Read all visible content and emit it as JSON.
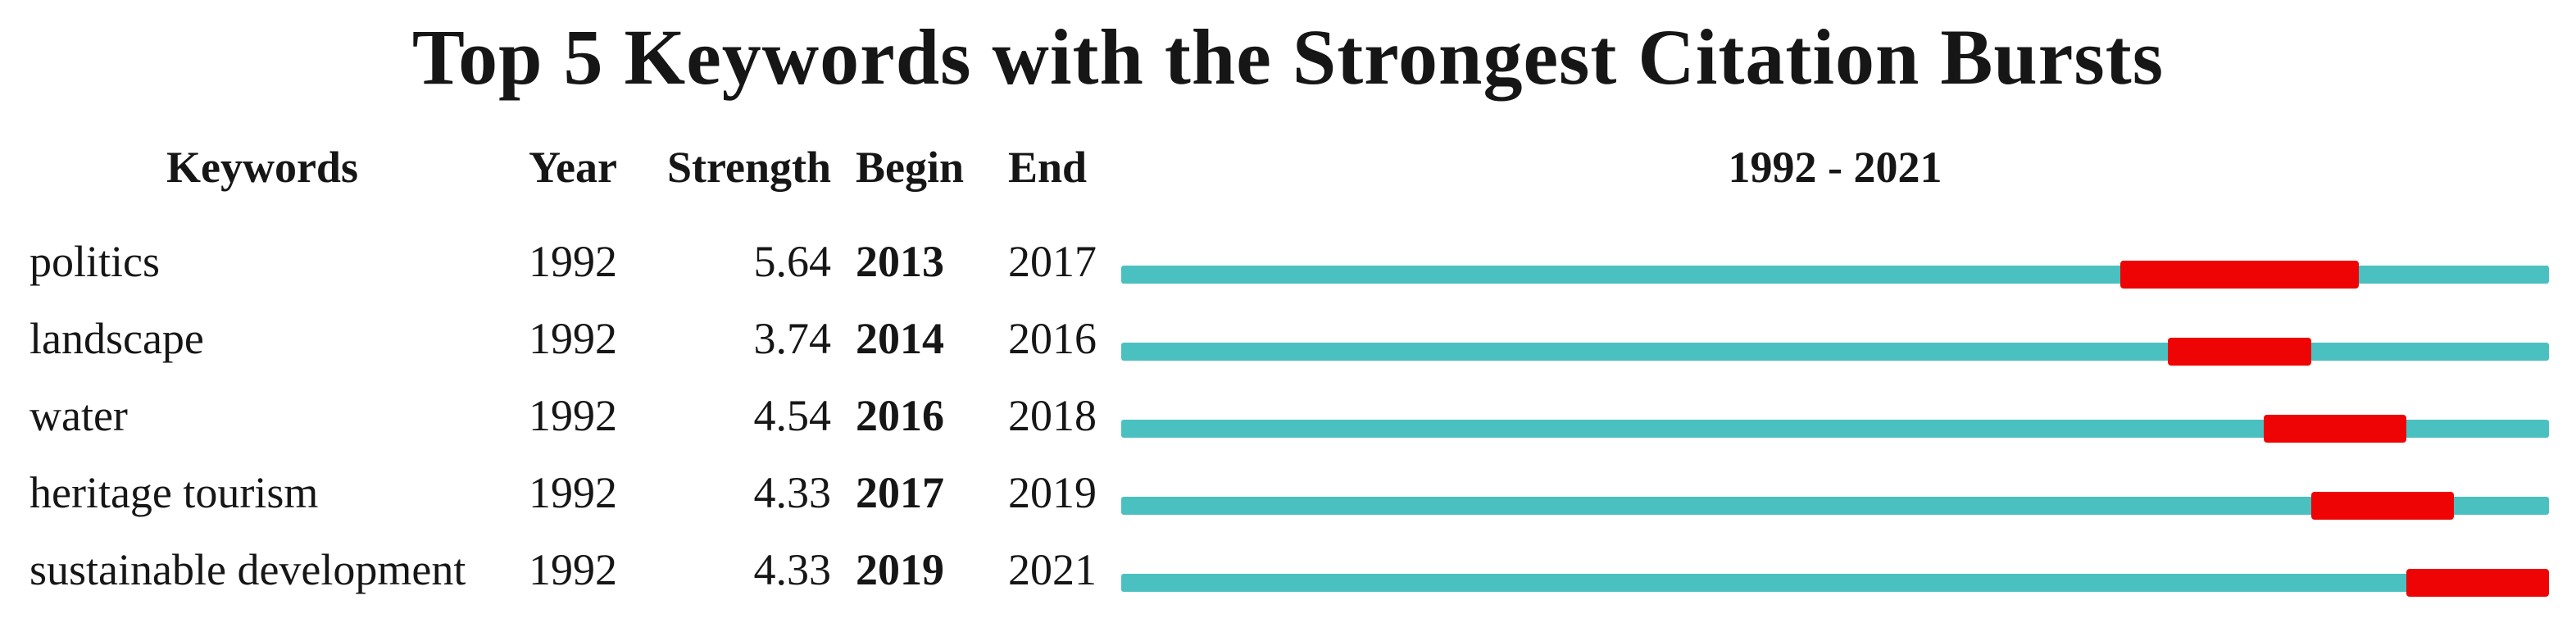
{
  "title": "Top 5 Keywords with the Strongest Citation Bursts",
  "colors": {
    "timeline_line": "#4BC0C0",
    "burst_segment": "#EE0404",
    "text": "#161616",
    "background": "#ffffff"
  },
  "chart_data": {
    "type": "table",
    "title": "Top 5 Keywords with the Strongest Citation Bursts",
    "columns": [
      "Keywords",
      "Year",
      "Strength",
      "Begin",
      "End"
    ],
    "timeline_header": "1992 - 2021",
    "timeline_start": 1992,
    "timeline_end": 2021,
    "legend": {
      "teal_line": "full 1992-2021 interval",
      "red_segment": "citation burst interval (Begin to End)"
    },
    "rows": [
      {
        "keyword": "politics",
        "year": "1992",
        "strength": "5.64",
        "begin": "2013",
        "end": "2017"
      },
      {
        "keyword": "landscape",
        "year": "1992",
        "strength": "3.74",
        "begin": "2014",
        "end": "2016"
      },
      {
        "keyword": "water",
        "year": "1992",
        "strength": "4.54",
        "begin": "2016",
        "end": "2018"
      },
      {
        "keyword": "heritage tourism",
        "year": "1992",
        "strength": "4.33",
        "begin": "2017",
        "end": "2019"
      },
      {
        "keyword": "sustainable development",
        "year": "1992",
        "strength": "4.33",
        "begin": "2019",
        "end": "2021"
      }
    ]
  }
}
